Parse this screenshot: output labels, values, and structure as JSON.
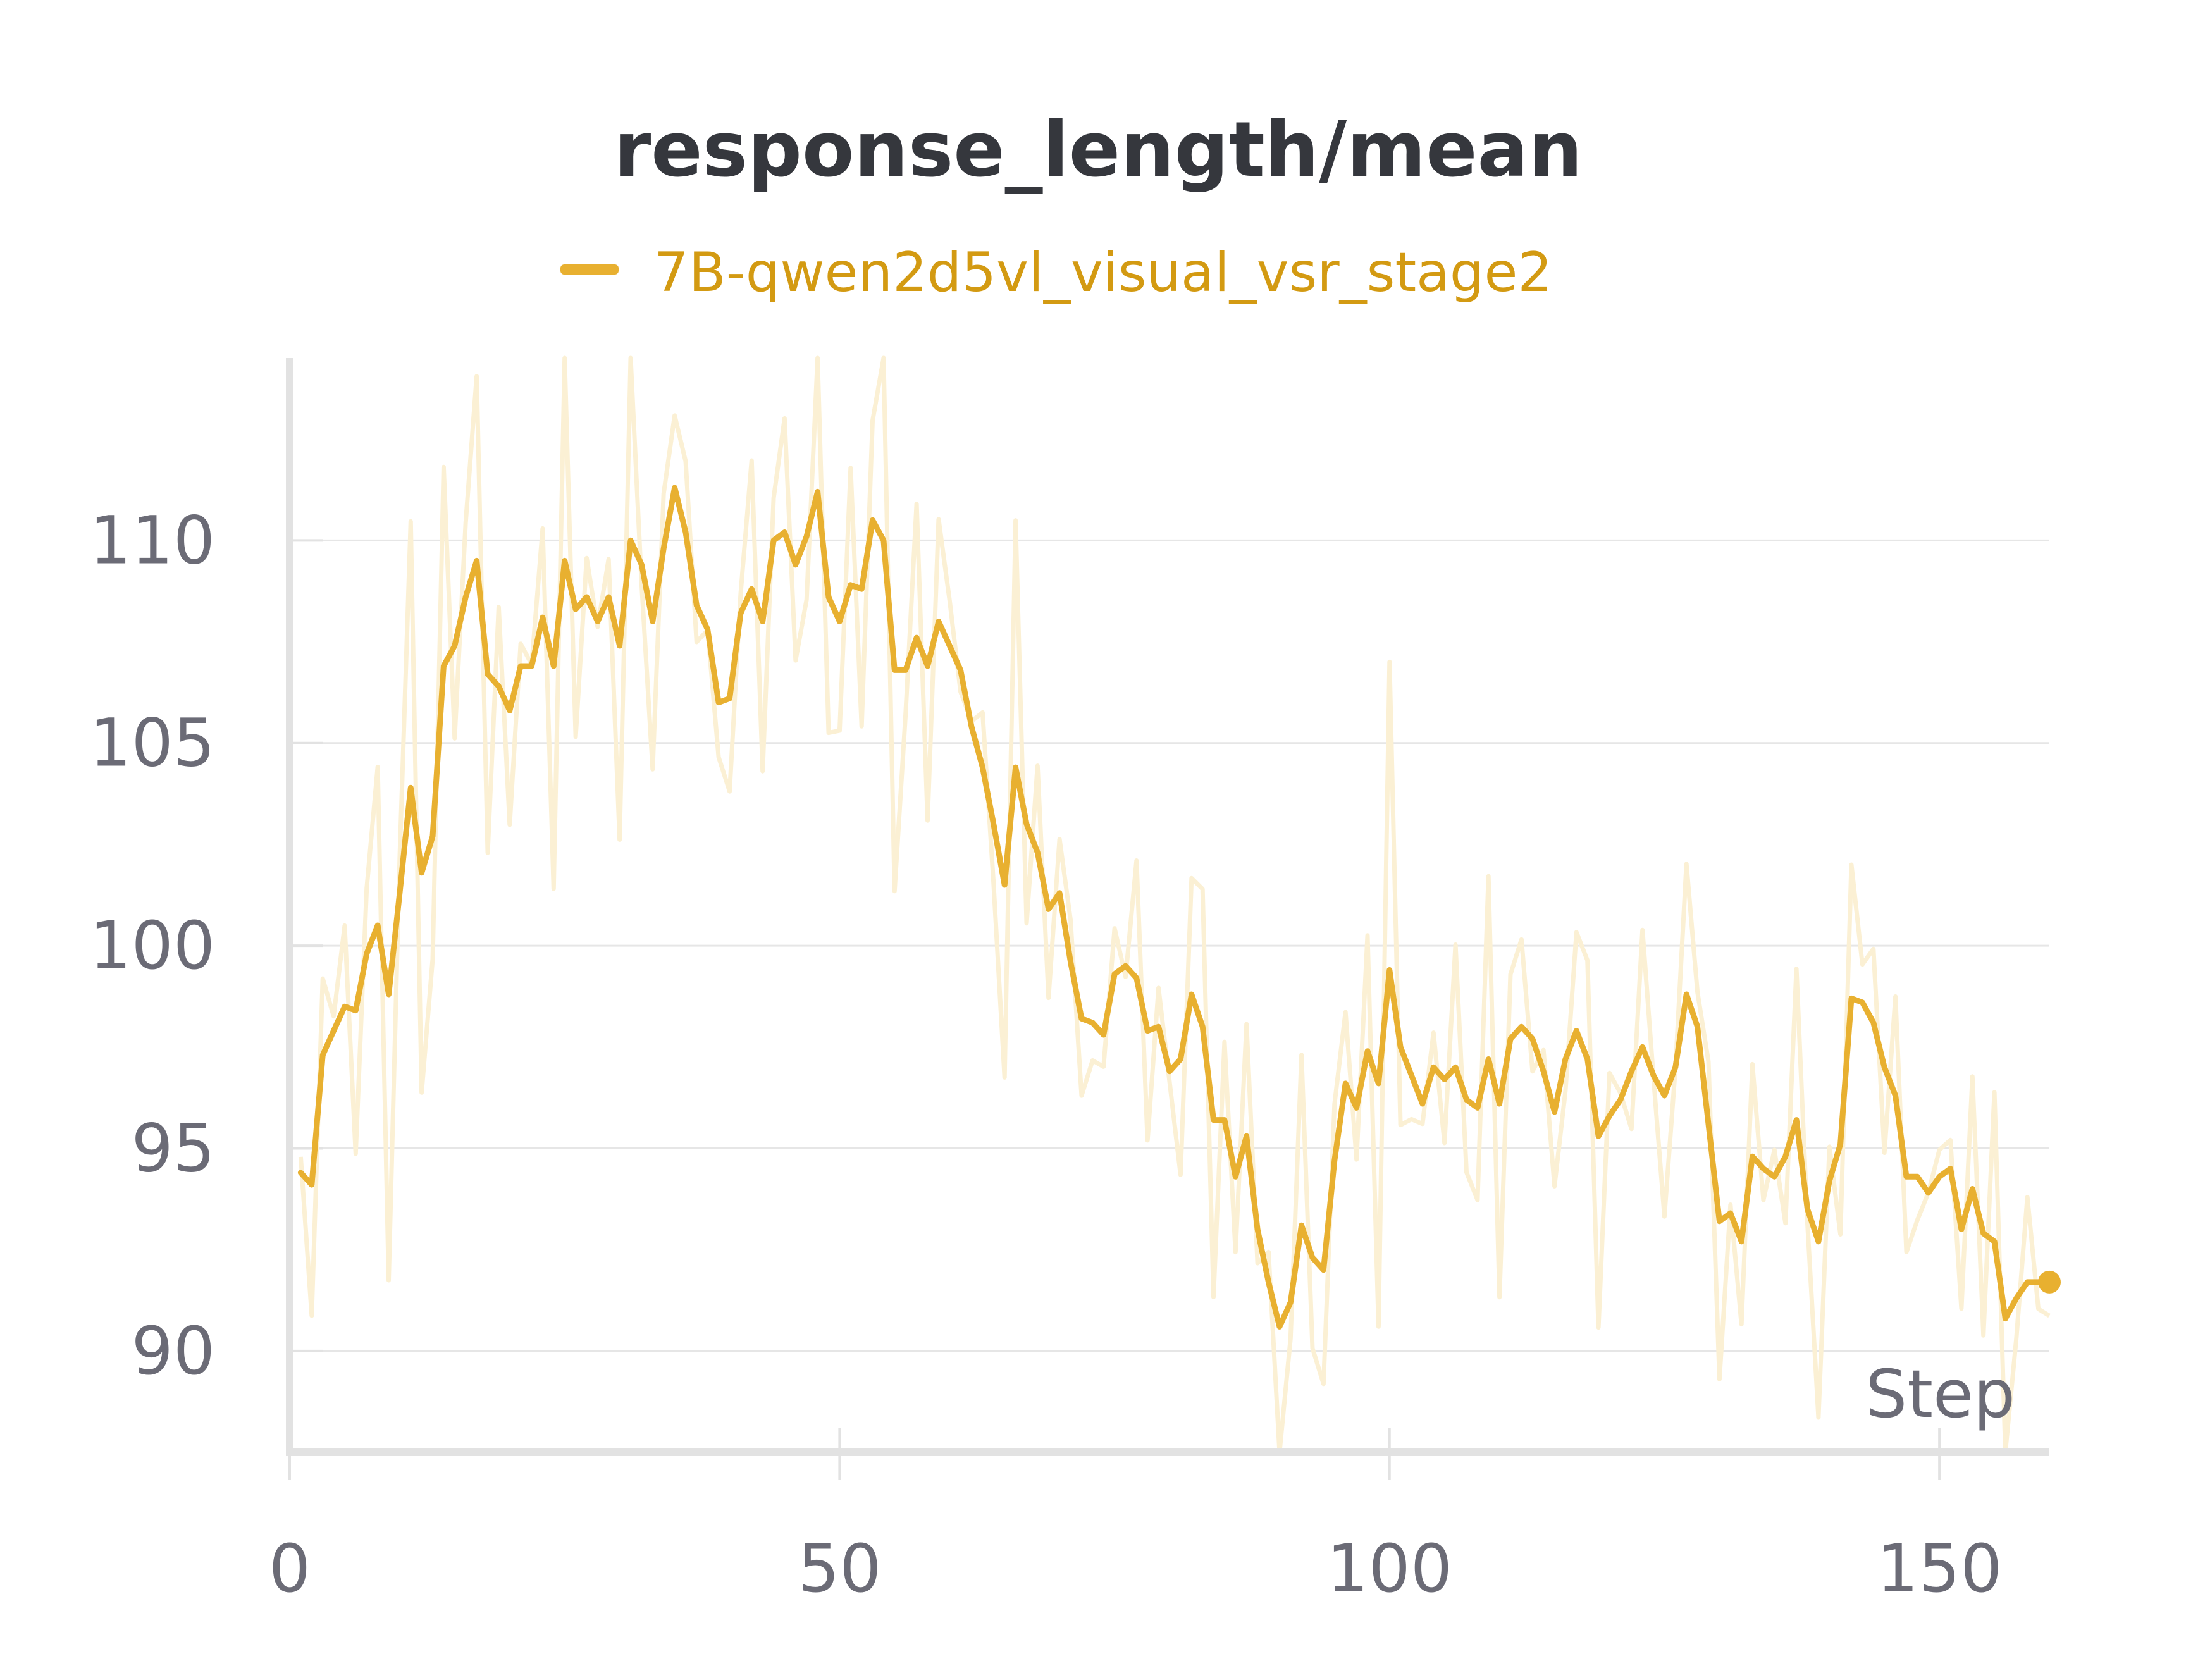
{
  "chart_data": {
    "type": "line",
    "title": "response_length/mean",
    "xlabel": "Step",
    "ylabel": "",
    "xlim": [
      0,
      160
    ],
    "ylim": [
      87.5,
      114.5
    ],
    "x_ticks": [
      "0",
      "50",
      "100",
      "150"
    ],
    "y_ticks": [
      "90",
      "95",
      "100",
      "105",
      "110"
    ],
    "grid": "horizontal",
    "legend_position": "top-center",
    "colors": {
      "series": "#e8b030",
      "raw": "#fbf0d4",
      "legend_text": "#d39a12"
    },
    "series": [
      {
        "name": "7B-qwen2d5vl_visual_vsr_stage2",
        "x": [
          1,
          2,
          3,
          4,
          5,
          6,
          7,
          8,
          9,
          10,
          11,
          12,
          13,
          14,
          15,
          16,
          17,
          18,
          19,
          20,
          21,
          22,
          23,
          24,
          25,
          26,
          27,
          28,
          29,
          30,
          31,
          32,
          33,
          34,
          35,
          36,
          37,
          38,
          39,
          40,
          41,
          42,
          43,
          44,
          45,
          46,
          47,
          48,
          49,
          50,
          51,
          52,
          53,
          54,
          55,
          56,
          57,
          58,
          59,
          60,
          61,
          62,
          63,
          64,
          65,
          66,
          67,
          68,
          69,
          70,
          71,
          72,
          73,
          74,
          75,
          76,
          77,
          78,
          79,
          80,
          81,
          82,
          83,
          84,
          85,
          86,
          87,
          88,
          89,
          90,
          91,
          92,
          93,
          94,
          95,
          96,
          97,
          98,
          99,
          100,
          101,
          102,
          103,
          104,
          105,
          106,
          107,
          108,
          109,
          110,
          111,
          112,
          113,
          114,
          115,
          116,
          117,
          118,
          119,
          120,
          121,
          122,
          123,
          124,
          125,
          126,
          127,
          128,
          129,
          130,
          131,
          132,
          133,
          134,
          135,
          136,
          137,
          138,
          139,
          140,
          141,
          142,
          143,
          144,
          145,
          146,
          147,
          148,
          149,
          150,
          151,
          152,
          153,
          154,
          155,
          156,
          157,
          158,
          159,
          160
        ],
        "smoothed": [
          94.4,
          94.1,
          97.3,
          97.9,
          98.5,
          98.4,
          99.8,
          100.5,
          98.8,
          101.3,
          103.9,
          101.8,
          102.7,
          106.9,
          107.4,
          108.6,
          109.5,
          106.7,
          106.4,
          105.8,
          106.9,
          106.9,
          108.1,
          106.9,
          109.5,
          108.3,
          108.6,
          108.0,
          108.6,
          107.4,
          110.0,
          109.4,
          108.0,
          109.8,
          111.3,
          110.2,
          108.4,
          107.8,
          106.0,
          106.1,
          108.2,
          108.8,
          108.0,
          110.0,
          110.2,
          109.4,
          110.1,
          111.2,
          108.6,
          108.0,
          108.9,
          108.8,
          110.5,
          110.0,
          106.8,
          106.8,
          107.6,
          106.9,
          108.0,
          107.4,
          106.8,
          105.4,
          104.4,
          103.0,
          101.5,
          104.4,
          103.0,
          102.3,
          100.9,
          101.3,
          99.6,
          98.2,
          98.1,
          97.8,
          99.3,
          99.5,
          99.2,
          97.9,
          98.0,
          96.9,
          97.2,
          98.8,
          98.0,
          95.7,
          95.7,
          94.3,
          95.3,
          93.0,
          91.7,
          90.6,
          91.2,
          93.1,
          92.3,
          92.0,
          94.7,
          96.6,
          96.0,
          97.4,
          96.6,
          99.4,
          97.5,
          96.8,
          96.1,
          97.0,
          96.7,
          97.0,
          96.2,
          96.0,
          97.2,
          96.1,
          97.7,
          98.0,
          97.7,
          96.9,
          95.9,
          97.2,
          97.9,
          97.2,
          95.3,
          95.8,
          96.2,
          96.9,
          97.5,
          96.8,
          96.3,
          97.0,
          98.8,
          98.0,
          95.6,
          93.2,
          93.4,
          92.7,
          94.8,
          94.5,
          94.3,
          94.8,
          95.7,
          93.5,
          92.7,
          94.2,
          95.1,
          98.7,
          98.6,
          98.1,
          97.0,
          96.3,
          94.3,
          94.3,
          93.9,
          94.3,
          94.5,
          93.0,
          94.0,
          92.9,
          92.7,
          90.8,
          91.3,
          91.7,
          91.7,
          91.7
        ]
      }
    ],
    "end_marker": {
      "x": 160,
      "y": 91.7
    }
  }
}
